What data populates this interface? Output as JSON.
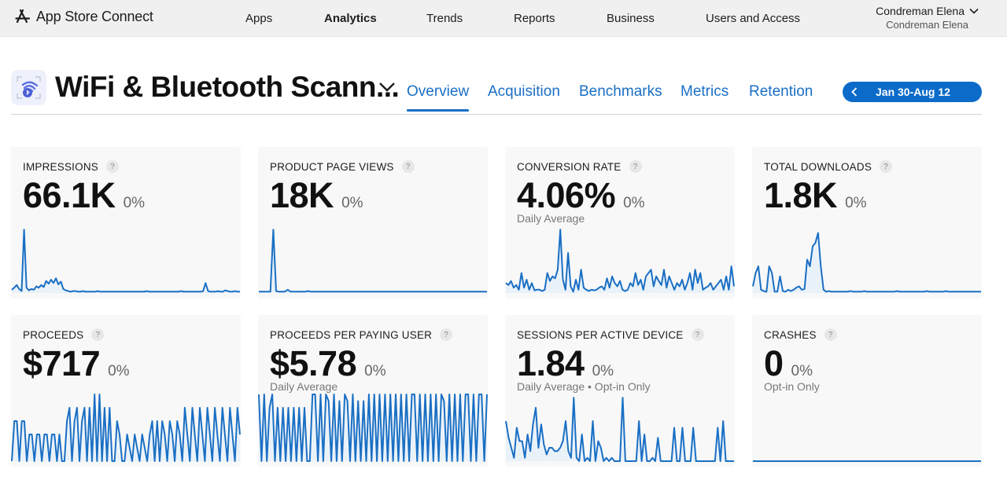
{
  "topbar": {
    "brand": "App Store Connect",
    "nav": [
      {
        "label": "Apps",
        "active": false
      },
      {
        "label": "Analytics",
        "active": true
      },
      {
        "label": "Trends",
        "active": false
      },
      {
        "label": "Reports",
        "active": false
      },
      {
        "label": "Business",
        "active": false
      },
      {
        "label": "Users and Access",
        "active": false
      }
    ],
    "user": {
      "name": "Condreman Elena",
      "team": "Condreman Elena"
    }
  },
  "app": {
    "title": "WiFi & Bluetooth Scann...",
    "icon": "wifi-bluetooth-app-icon",
    "tabs": [
      {
        "label": "Overview",
        "active": true
      },
      {
        "label": "Acquisition",
        "active": false
      },
      {
        "label": "Benchmarks",
        "active": false
      },
      {
        "label": "Metrics",
        "active": false
      },
      {
        "label": "Retention",
        "active": false
      }
    ],
    "date_range": "Jan 30-Aug 12"
  },
  "colors": {
    "accent": "#0c6bc9",
    "line": "#1a6fc4",
    "card_bg": "#f8f8f8"
  },
  "cards": [
    {
      "title": "IMPRESSIONS",
      "value": "66.1K",
      "change": "0%",
      "sub": "",
      "help": "?"
    },
    {
      "title": "PRODUCT PAGE VIEWS",
      "value": "18K",
      "change": "0%",
      "sub": "",
      "help": "?"
    },
    {
      "title": "CONVERSION RATE",
      "value": "4.06%",
      "change": "0%",
      "sub": "Daily Average",
      "help": "?"
    },
    {
      "title": "TOTAL DOWNLOADS",
      "value": "1.8K",
      "change": "0%",
      "sub": "",
      "help": "?"
    },
    {
      "title": "PROCEEDS",
      "value": "$717",
      "change": "0%",
      "sub": "",
      "help": "?"
    },
    {
      "title": "PROCEEDS PER PAYING USER",
      "value": "$5.78",
      "change": "0%",
      "sub": "Daily Average",
      "help": "?"
    },
    {
      "title": "SESSIONS PER ACTIVE DEVICE",
      "value": "1.84",
      "change": "0%",
      "sub": "Daily Average • Opt-in Only",
      "help": "?"
    },
    {
      "title": "CRASHES",
      "value": "0",
      "change": "0%",
      "sub": "Opt-in Only",
      "help": "?"
    }
  ],
  "chart_data": [
    {
      "type": "line",
      "title": "IMPRESSIONS",
      "xlabel": "",
      "ylabel": "",
      "grid": false,
      "ylim": [
        0,
        100
      ],
      "values": [
        5,
        8,
        12,
        6,
        3,
        95,
        8,
        4,
        6,
        5,
        10,
        8,
        12,
        9,
        18,
        14,
        20,
        15,
        22,
        13,
        17,
        6,
        4,
        3,
        2,
        3,
        3,
        2,
        2,
        3,
        2,
        2,
        2,
        2,
        2,
        3,
        2,
        2,
        2,
        2,
        2,
        2,
        2,
        2,
        2,
        2,
        2,
        2,
        2,
        2,
        2,
        2,
        2,
        2,
        2,
        3,
        2,
        2,
        2,
        2,
        2,
        2,
        2,
        2,
        2,
        2,
        2,
        2,
        2,
        3,
        2,
        2,
        2,
        2,
        2,
        2,
        2,
        2,
        3,
        15,
        3,
        2,
        2,
        2,
        3,
        2,
        2,
        4,
        3,
        2,
        2,
        3,
        2,
        2
      ]
    },
    {
      "type": "line",
      "title": "PRODUCT PAGE VIEWS",
      "ylim": [
        0,
        100
      ],
      "values": [
        2,
        2,
        2,
        2,
        2,
        95,
        3,
        2,
        2,
        2,
        5,
        2,
        2,
        2,
        2,
        2,
        2,
        3,
        2,
        2,
        2,
        2,
        2,
        2,
        2,
        2,
        2,
        2,
        2,
        2,
        2,
        2,
        2,
        2,
        2,
        2,
        2,
        2,
        2,
        2,
        2,
        2,
        2,
        2,
        2,
        2,
        2,
        2,
        2,
        2,
        2,
        2,
        2,
        2,
        2,
        2,
        2,
        2,
        2,
        2,
        2,
        2,
        2,
        2,
        2,
        2,
        2,
        2,
        2,
        2,
        2,
        2,
        2,
        2,
        2,
        2,
        2,
        2,
        2,
        2
      ]
    },
    {
      "type": "line",
      "title": "CONVERSION RATE",
      "ylim": [
        0,
        100
      ],
      "values": [
        15,
        12,
        18,
        8,
        12,
        5,
        30,
        8,
        20,
        5,
        15,
        4,
        5,
        5,
        3,
        5,
        30,
        18,
        25,
        22,
        35,
        95,
        20,
        5,
        60,
        10,
        2,
        20,
        5,
        35,
        8,
        5,
        3,
        5,
        4,
        5,
        8,
        10,
        5,
        22,
        8,
        25,
        15,
        10,
        18,
        5,
        3,
        5,
        15,
        10,
        30,
        12,
        20,
        5,
        25,
        30,
        35,
        10,
        25,
        18,
        12,
        35,
        8,
        25,
        15,
        5,
        15,
        10,
        20,
        5,
        15,
        30,
        5,
        35,
        15,
        30,
        5,
        8,
        10,
        15,
        5,
        10,
        15,
        20,
        5,
        25,
        5,
        40,
        10
      ]
    },
    {
      "type": "line",
      "title": "TOTAL DOWNLOADS",
      "ylim": [
        0,
        100
      ],
      "values": [
        10,
        30,
        40,
        5,
        3,
        2,
        40,
        30,
        2,
        2,
        25,
        3,
        2,
        5,
        3,
        5,
        8,
        10,
        5,
        6,
        50,
        40,
        70,
        75,
        90,
        40,
        5,
        2,
        3,
        2,
        2,
        2,
        2,
        2,
        2,
        2,
        3,
        2,
        2,
        2,
        2,
        3,
        2,
        2,
        2,
        2,
        2,
        2,
        2,
        2,
        2,
        2,
        2,
        3,
        2,
        2,
        2,
        2,
        2,
        2,
        2,
        2,
        2,
        2,
        3,
        2,
        2,
        2,
        2,
        2,
        2,
        3,
        2,
        2,
        2,
        2,
        2,
        2,
        2,
        2,
        2,
        2,
        2,
        2,
        2
      ]
    },
    {
      "type": "line",
      "title": "PROCEEDS",
      "ylim": [
        0,
        100
      ],
      "values": [
        0,
        60,
        60,
        0,
        60,
        60,
        0,
        40,
        40,
        0,
        40,
        40,
        0,
        40,
        40,
        0,
        40,
        40,
        0,
        40,
        0,
        0,
        60,
        80,
        0,
        60,
        80,
        0,
        60,
        80,
        0,
        80,
        0,
        100,
        0,
        100,
        0,
        80,
        0,
        80,
        0,
        0,
        60,
        40,
        0,
        0,
        40,
        20,
        0,
        40,
        20,
        0,
        40,
        20,
        0,
        40,
        60,
        0,
        60,
        0,
        60,
        40,
        0,
        60,
        40,
        0,
        60,
        40,
        0,
        80,
        40,
        0,
        80,
        40,
        0,
        80,
        40,
        0,
        80,
        40,
        0,
        80,
        40,
        0,
        80,
        40,
        0,
        80,
        40,
        0,
        80,
        40
      ]
    },
    {
      "type": "line",
      "title": "PROCEEDS PER PAYING USER",
      "ylim": [
        0,
        100
      ],
      "values": [
        100,
        0,
        100,
        0,
        80,
        100,
        0,
        80,
        0,
        80,
        0,
        80,
        0,
        80,
        0,
        80,
        0,
        80,
        0,
        0,
        100,
        100,
        0,
        100,
        0,
        100,
        90,
        0,
        100,
        0,
        90,
        0,
        100,
        90,
        0,
        100,
        0,
        90,
        0,
        90,
        0,
        100,
        0,
        100,
        0,
        100,
        0,
        100,
        0,
        100,
        0,
        100,
        0,
        100,
        0,
        100,
        0,
        100,
        100,
        0,
        100,
        0,
        100,
        0,
        100,
        0,
        100,
        0,
        100,
        90,
        0,
        100,
        0,
        100,
        0,
        100,
        0,
        100,
        100,
        0,
        100,
        0,
        100,
        100,
        0,
        100
      ]
    },
    {
      "type": "line",
      "title": "SESSIONS PER ACTIVE DEVICE",
      "ylim": [
        0,
        100
      ],
      "values": [
        60,
        35,
        20,
        5,
        50,
        30,
        30,
        5,
        40,
        15,
        55,
        80,
        20,
        55,
        25,
        10,
        20,
        20,
        15,
        15,
        20,
        30,
        60,
        15,
        5,
        95,
        5,
        0,
        40,
        0,
        5,
        0,
        60,
        0,
        30,
        20,
        0,
        5,
        0,
        5,
        0,
        0,
        0,
        95,
        0,
        0,
        0,
        0,
        0,
        60,
        0,
        40,
        0,
        0,
        5,
        0,
        35,
        0,
        0,
        0,
        0,
        0,
        50,
        0,
        0,
        50,
        0,
        0,
        0,
        50,
        0,
        0,
        0,
        0,
        0,
        0,
        0,
        0,
        50,
        0,
        60,
        0,
        0,
        0,
        0
      ]
    },
    {
      "type": "line",
      "title": "CRASHES",
      "ylim": [
        0,
        100
      ],
      "values": [
        0,
        0,
        0,
        0,
        0,
        0,
        0,
        0,
        0,
        0,
        0,
        0,
        0,
        0,
        0,
        0,
        0,
        0,
        0,
        0,
        0,
        0,
        0,
        0,
        0,
        0,
        0,
        0,
        0,
        0
      ]
    }
  ]
}
